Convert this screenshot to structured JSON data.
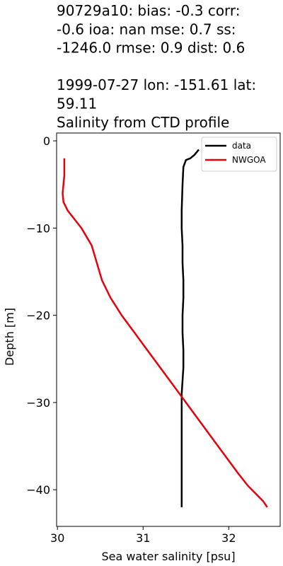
{
  "chart_data": {
    "type": "line",
    "title_lines": [
      "90729a10: bias: -0.3  corr:",
      "-0.6  ioa: nan  mse: 0.7  ss:",
      "-1246.0  rmse: 0.9  dist: 0.6",
      "",
      "1999-07-27 lon: -151.61 lat:",
      "59.11",
      "Salinity from CTD profile"
    ],
    "xlabel": "Sea water salinity [psu]",
    "ylabel": "Depth [m]",
    "xlim": [
      29.99,
      32.6
    ],
    "ylim": [
      -44.2,
      0.9
    ],
    "xticks": [
      30,
      31,
      32
    ],
    "yticks": [
      0,
      -10,
      -20,
      -30,
      -40
    ],
    "ytick_labels": [
      "0",
      "−10",
      "−20",
      "−30",
      "−40"
    ],
    "grid": false,
    "legend_position": "top-right",
    "series": [
      {
        "name": "data",
        "color": "#000000",
        "x": [
          31.65,
          31.6,
          31.55,
          31.5,
          31.47,
          31.46,
          31.45,
          31.45,
          31.46,
          31.46,
          31.47,
          31.47,
          31.46,
          31.46,
          31.47,
          31.47,
          31.46,
          31.45,
          31.45,
          31.45,
          31.45,
          31.45,
          31.45
        ],
        "y": [
          -1,
          -1.6,
          -2,
          -2.2,
          -3,
          -5,
          -8,
          -10,
          -12,
          -14,
          -16,
          -18,
          -20,
          -22,
          -24,
          -26,
          -27.5,
          -29,
          -31,
          -34,
          -37,
          -40,
          -42
        ]
      },
      {
        "name": "NWGOA",
        "color": "#e8000b",
        "x": [
          30.08,
          30.08,
          30.08,
          30.07,
          30.06,
          30.07,
          30.12,
          30.2,
          30.28,
          30.34,
          30.4,
          30.46,
          30.52,
          30.62,
          30.75,
          30.9,
          31.05,
          31.2,
          31.35,
          31.5,
          31.65,
          31.8,
          31.95,
          32.1,
          32.22,
          32.32,
          32.4,
          32.45
        ],
        "y": [
          -2,
          -3,
          -4,
          -5,
          -6,
          -7,
          -8,
          -9,
          -10,
          -11,
          -12,
          -14,
          -16,
          -18,
          -20,
          -22,
          -24,
          -26,
          -28,
          -30,
          -32,
          -34,
          -36,
          -38,
          -39.5,
          -40.5,
          -41.3,
          -42
        ]
      }
    ]
  }
}
